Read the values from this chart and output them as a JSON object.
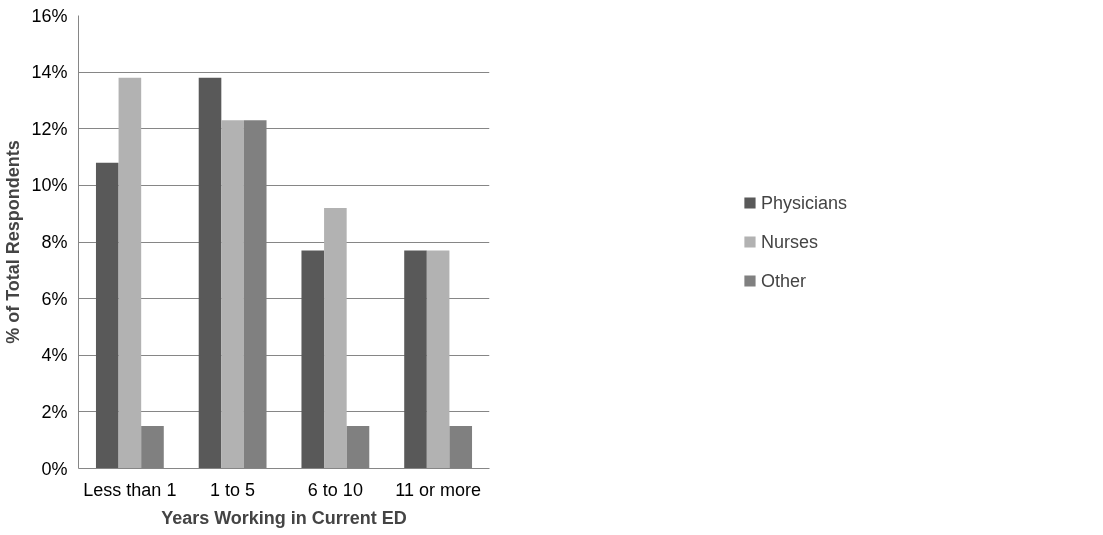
{
  "chart_data": {
    "type": "bar",
    "xlabel": "Years Working in Current ED",
    "ylabel": "% of Total Respondents",
    "categories": [
      "Less than 1",
      "1 to 5",
      "6 to 10",
      "11 or more"
    ],
    "series": [
      {
        "name": "Physicians",
        "color": "#595959",
        "values": [
          10.8,
          13.8,
          7.7,
          7.7
        ]
      },
      {
        "name": "Nurses",
        "color": "#b2b2b2",
        "values": [
          13.8,
          12.3,
          9.2,
          7.7
        ]
      },
      {
        "name": "Other",
        "color": "#808080",
        "values": [
          1.5,
          12.3,
          1.5,
          1.5
        ]
      }
    ],
    "ylim": [
      0,
      16
    ],
    "yticks": [
      {
        "value": 0,
        "label": "0%"
      },
      {
        "value": 2,
        "label": "2%"
      },
      {
        "value": 4,
        "label": "4%"
      },
      {
        "value": 6,
        "label": "6%"
      },
      {
        "value": 8,
        "label": "8%"
      },
      {
        "value": 10,
        "label": "10%"
      },
      {
        "value": 12,
        "label": "12%"
      },
      {
        "value": 14,
        "label": "14%"
      },
      {
        "value": 16,
        "label": "16%"
      }
    ],
    "grid": "y",
    "legend": "right"
  }
}
